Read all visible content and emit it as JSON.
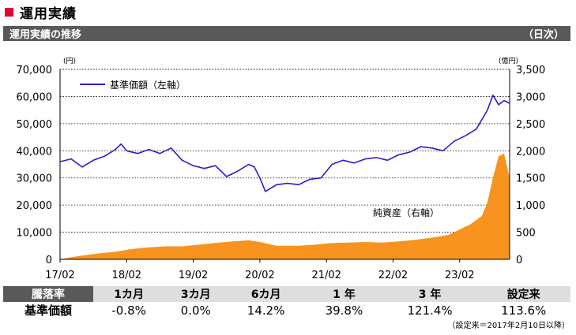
{
  "header": {
    "title": "運用実績",
    "section_title": "運用実績の推移",
    "section_period": "（日次）",
    "title_mark_color": "#e60033",
    "section_bar_color": "#595959"
  },
  "chart_data": {
    "type": "line+area",
    "x_start": "2017-02",
    "x_end": "2023-11",
    "x_tick_labels": [
      "17/02",
      "18/02",
      "19/02",
      "20/02",
      "21/02",
      "22/02",
      "23/02"
    ],
    "left_axis": {
      "unit": "(円)",
      "ylim": [
        0,
        70000
      ],
      "tick_labels": [
        "0",
        "10,000",
        "20,000",
        "30,000",
        "40,000",
        "50,000",
        "60,000",
        "70,000"
      ]
    },
    "right_axis": {
      "unit": "(億円)",
      "ylim": [
        0,
        3500
      ],
      "tick_labels": [
        "0",
        "500",
        "1,000",
        "1,500",
        "2,000",
        "2,500",
        "3,000",
        "3,500"
      ]
    },
    "gridlines": "dotted horizontal",
    "series": [
      {
        "name": "基準価額（左軸）",
        "kind": "line",
        "axis": "left",
        "color": "#3319cc",
        "points": [
          [
            "2017-02",
            36000
          ],
          [
            "2017-04",
            37000
          ],
          [
            "2017-06",
            34000
          ],
          [
            "2017-08",
            36500
          ],
          [
            "2017-10",
            38000
          ],
          [
            "2017-12",
            40500
          ],
          [
            "2018-01",
            42500
          ],
          [
            "2018-02",
            40000
          ],
          [
            "2018-04",
            39000
          ],
          [
            "2018-06",
            40500
          ],
          [
            "2018-08",
            39000
          ],
          [
            "2018-10",
            41000
          ],
          [
            "2018-12",
            36500
          ],
          [
            "2019-02",
            34500
          ],
          [
            "2019-04",
            33500
          ],
          [
            "2019-06",
            34500
          ],
          [
            "2019-08",
            30500
          ],
          [
            "2019-10",
            32500
          ],
          [
            "2019-12",
            35000
          ],
          [
            "2020-01",
            34000
          ],
          [
            "2020-02",
            30000
          ],
          [
            "2020-03",
            25000
          ],
          [
            "2020-05",
            27500
          ],
          [
            "2020-07",
            28000
          ],
          [
            "2020-09",
            27500
          ],
          [
            "2020-11",
            29500
          ],
          [
            "2021-01",
            30000
          ],
          [
            "2021-03",
            35000
          ],
          [
            "2021-05",
            36500
          ],
          [
            "2021-07",
            35500
          ],
          [
            "2021-09",
            37000
          ],
          [
            "2021-11",
            37500
          ],
          [
            "2022-01",
            36500
          ],
          [
            "2022-03",
            38500
          ],
          [
            "2022-05",
            39500
          ],
          [
            "2022-07",
            41500
          ],
          [
            "2022-09",
            41000
          ],
          [
            "2022-11",
            40000
          ],
          [
            "2023-01",
            43500
          ],
          [
            "2023-03",
            45500
          ],
          [
            "2023-05",
            48000
          ],
          [
            "2023-07",
            55000
          ],
          [
            "2023-08",
            60500
          ],
          [
            "2023-09",
            57000
          ],
          [
            "2023-10",
            58500
          ],
          [
            "2023-11",
            57500
          ]
        ]
      },
      {
        "name": "純資産（右軸）",
        "kind": "area",
        "axis": "right",
        "color": "#f7931e",
        "points": [
          [
            "2017-02",
            0
          ],
          [
            "2017-04",
            40
          ],
          [
            "2017-06",
            70
          ],
          [
            "2017-09",
            110
          ],
          [
            "2017-12",
            140
          ],
          [
            "2018-03",
            190
          ],
          [
            "2018-06",
            220
          ],
          [
            "2018-09",
            240
          ],
          [
            "2018-12",
            240
          ],
          [
            "2019-03",
            270
          ],
          [
            "2019-06",
            300
          ],
          [
            "2019-09",
            330
          ],
          [
            "2019-12",
            350
          ],
          [
            "2020-02",
            320
          ],
          [
            "2020-05",
            250
          ],
          [
            "2020-09",
            250
          ],
          [
            "2020-12",
            270
          ],
          [
            "2021-03",
            300
          ],
          [
            "2021-06",
            310
          ],
          [
            "2021-09",
            320
          ],
          [
            "2021-12",
            310
          ],
          [
            "2022-03",
            330
          ],
          [
            "2022-06",
            360
          ],
          [
            "2022-09",
            400
          ],
          [
            "2022-12",
            450
          ],
          [
            "2023-02",
            550
          ],
          [
            "2023-04",
            650
          ],
          [
            "2023-06",
            800
          ],
          [
            "2023-07",
            1050
          ],
          [
            "2023-08",
            1500
          ],
          [
            "2023-09",
            1900
          ],
          [
            "2023-10",
            1950
          ],
          [
            "2023-11",
            1500
          ]
        ]
      }
    ],
    "legend_label": "基準価額（左軸）",
    "area_label": "純資産（右軸）"
  },
  "performance": {
    "header_label": "騰落率",
    "row_label": "基準価額",
    "periods": [
      "1カ月",
      "3カ月",
      "6カ月",
      "1 年",
      "3 年",
      "設定来"
    ],
    "values": [
      "-0.8%",
      "0.0%",
      "14.2%",
      "39.8%",
      "121.4%",
      "113.6%"
    ],
    "footnote": "（設定来＝2017年2月10日以降）"
  }
}
